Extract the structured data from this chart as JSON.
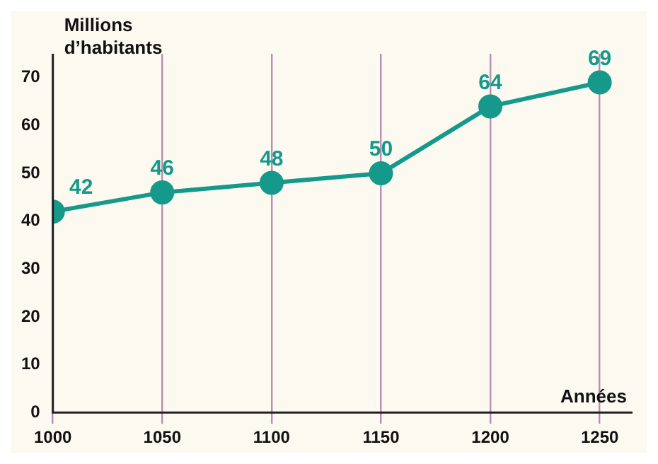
{
  "chart_data": {
    "type": "line",
    "xlabel": "Années",
    "ylabel": "Millions d’habitants",
    "x": [
      1000,
      1050,
      1100,
      1150,
      1200,
      1250
    ],
    "series": [
      {
        "color": "#15998a",
        "values": [
          42,
          46,
          48,
          50,
          64,
          69
        ]
      }
    ],
    "xlim": [
      1000,
      1265
    ],
    "xticks": [
      1000,
      1050,
      1100,
      1150,
      1200,
      1250
    ],
    "ylim": [
      0,
      75
    ],
    "yticks": [
      0,
      10,
      20,
      30,
      40,
      50,
      60,
      70
    ],
    "grid": "x",
    "marker": "circle",
    "line_style": "solid",
    "data_labels": true,
    "legend": false
  }
}
